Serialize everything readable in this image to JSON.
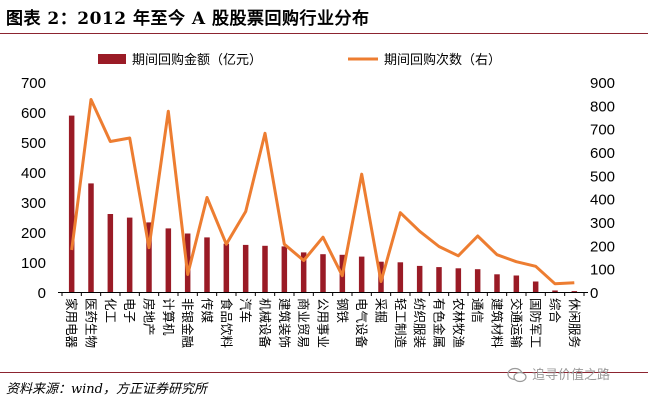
{
  "figure_title": "图表 2：2012 年至今 A 股股票回购行业分布",
  "source_text": "资料来源：wind，方正证券研究所",
  "watermark_text": "追寻价值之路",
  "colors": {
    "bar": "#9a1b26",
    "line": "#ed7d31",
    "title_rule": "#8c2430",
    "axis": "#000000",
    "watermark": "#9a9a9a"
  },
  "chart_data": {
    "type": "bar",
    "categories": [
      "家用电器",
      "医药生物",
      "化工",
      "电子",
      "房地产",
      "计算机",
      "非银金融",
      "传媒",
      "食品饮料",
      "汽车",
      "机械设备",
      "建筑装饰",
      "商业贸易",
      "公用事业",
      "钢铁",
      "电气设备",
      "采掘",
      "轻工制造",
      "纺织服装",
      "有色金属",
      "农林牧渔",
      "通信",
      "建筑材料",
      "交通运输",
      "国防军工",
      "综合",
      "休闲服务"
    ],
    "series": [
      {
        "name": "期间回购金额（亿元）",
        "type": "bar",
        "axis": "left",
        "values": [
          588,
          362,
          260,
          248,
          232,
          212,
          195,
          182,
          161,
          157,
          154,
          152,
          132,
          126,
          124,
          118,
          101,
          99,
          87,
          83,
          79,
          76,
          59,
          55,
          35,
          5,
          3
        ]
      },
      {
        "name": "期间回购次数（右）",
        "type": "line",
        "axis": "right",
        "values": [
          180,
          825,
          645,
          660,
          190,
          775,
          75,
          405,
          205,
          345,
          680,
          205,
          135,
          235,
          70,
          505,
          45,
          340,
          260,
          195,
          155,
          240,
          160,
          130,
          110,
          35,
          40
        ]
      }
    ],
    "y_left": {
      "min": 0,
      "max": 700,
      "ticks": [
        0,
        100,
        200,
        300,
        400,
        500,
        600,
        700
      ]
    },
    "y_right": {
      "min": 0,
      "max": 900,
      "ticks": [
        0,
        100,
        200,
        300,
        400,
        500,
        600,
        700,
        800,
        900
      ]
    },
    "legend_position": "top",
    "grid": false
  }
}
